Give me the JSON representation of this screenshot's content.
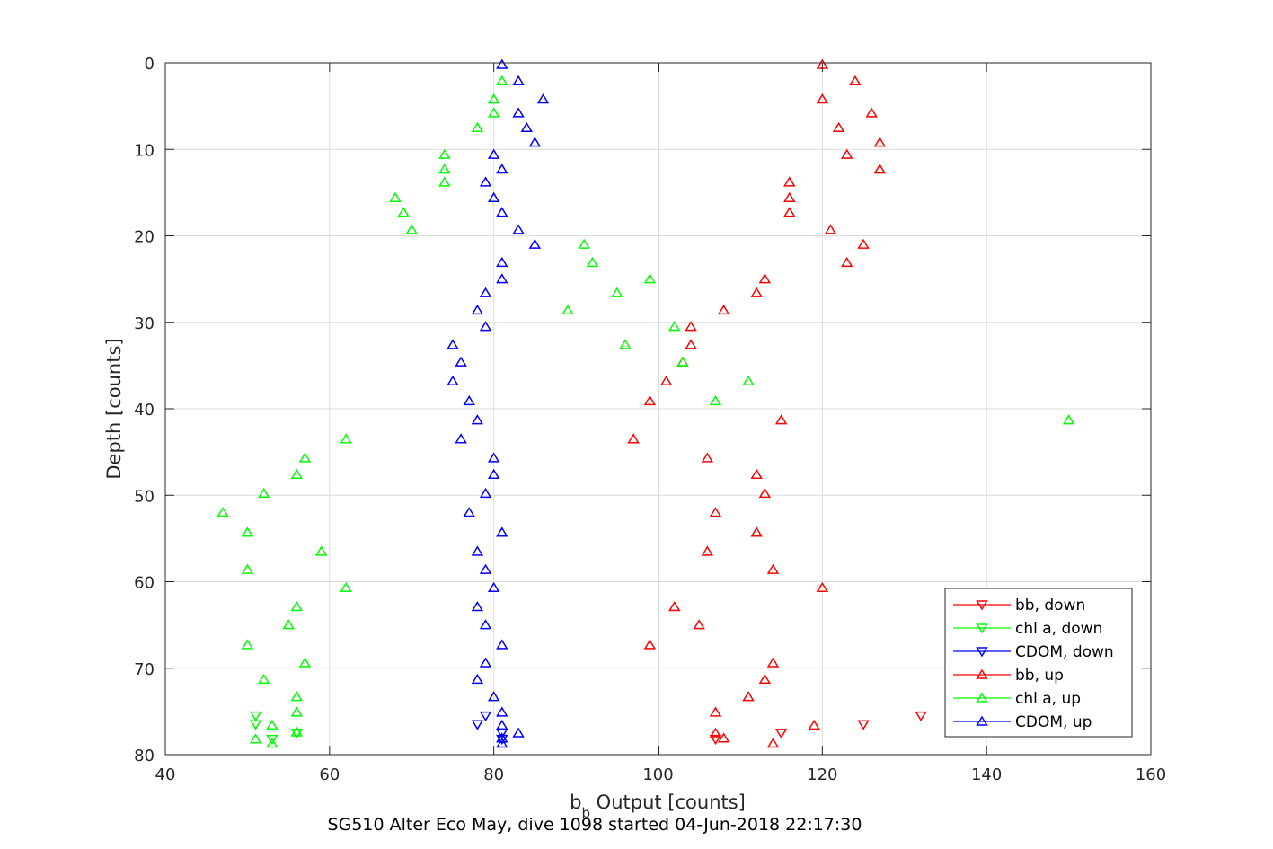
{
  "chart_data": {
    "type": "scatter",
    "xlabel_main": "b",
    "xlabel_sub": "b",
    "xlabel_rest": " Output [counts]",
    "ylabel": "Depth [counts]",
    "caption": "SG510 Alter Eco May, dive 1098 started 04-Jun-2018 22:17:30",
    "xlim": [
      40,
      160
    ],
    "ylim": [
      0,
      80
    ],
    "y_reversed": true,
    "xticks": [
      40,
      60,
      80,
      100,
      120,
      140,
      160
    ],
    "yticks": [
      0,
      10,
      20,
      30,
      40,
      50,
      60,
      70,
      80
    ],
    "grid": true,
    "legend_position": "bottom-right",
    "series": [
      {
        "name": "bb, down",
        "color": "#ff0000",
        "marker": "triangle-down",
        "points": [
          [
            132,
            75.5
          ],
          [
            125,
            76.5
          ],
          [
            115,
            77.5
          ],
          [
            107,
            78.2
          ]
        ]
      },
      {
        "name": "chl a, down",
        "color": "#00ff00",
        "marker": "triangle-down",
        "points": [
          [
            51,
            75.5
          ],
          [
            51,
            76.5
          ],
          [
            56,
            77.5
          ],
          [
            53,
            78.2
          ]
        ]
      },
      {
        "name": "CDOM, down",
        "color": "#0000ff",
        "marker": "triangle-down",
        "points": [
          [
            79,
            75.5
          ],
          [
            78,
            76.5
          ],
          [
            81,
            77.5
          ],
          [
            81,
            78.2
          ]
        ]
      },
      {
        "name": "bb, up",
        "color": "#ff0000",
        "marker": "triangle-up",
        "points": [
          [
            120,
            0.2
          ],
          [
            124,
            2.1
          ],
          [
            120,
            4.2
          ],
          [
            126,
            5.8
          ],
          [
            122,
            7.5
          ],
          [
            127,
            9.2
          ],
          [
            123,
            10.6
          ],
          [
            127,
            12.3
          ],
          [
            116,
            13.8
          ],
          [
            116,
            15.6
          ],
          [
            116,
            17.3
          ],
          [
            121,
            19.3
          ],
          [
            125,
            21.0
          ],
          [
            123,
            23.1
          ],
          [
            113,
            25.0
          ],
          [
            112,
            26.6
          ],
          [
            108,
            28.6
          ],
          [
            104,
            30.5
          ],
          [
            104,
            32.6
          ],
          [
            103,
            34.6
          ],
          [
            101,
            36.8
          ],
          [
            99,
            39.1
          ],
          [
            115,
            41.3
          ],
          [
            97,
            43.5
          ],
          [
            106,
            45.7
          ],
          [
            112,
            47.6
          ],
          [
            113,
            49.8
          ],
          [
            107,
            52.0
          ],
          [
            112,
            54.3
          ],
          [
            106,
            56.5
          ],
          [
            114,
            58.6
          ],
          [
            120,
            60.7
          ],
          [
            102,
            62.9
          ],
          [
            105,
            65.0
          ],
          [
            99,
            67.3
          ],
          [
            114,
            69.4
          ],
          [
            113,
            71.3
          ],
          [
            111,
            73.3
          ],
          [
            107,
            75.1
          ],
          [
            119,
            76.6
          ],
          [
            107,
            77.5
          ],
          [
            108,
            78.1
          ],
          [
            114,
            78.7
          ]
        ]
      },
      {
        "name": "chl a, up",
        "color": "#00ff00",
        "marker": "triangle-up",
        "points": [
          [
            81,
            2.1
          ],
          [
            80,
            4.2
          ],
          [
            80,
            5.8
          ],
          [
            78,
            7.5
          ],
          [
            74,
            10.6
          ],
          [
            74,
            12.3
          ],
          [
            74,
            13.8
          ],
          [
            68,
            15.6
          ],
          [
            69,
            17.3
          ],
          [
            70,
            19.3
          ],
          [
            91,
            21.0
          ],
          [
            92,
            23.1
          ],
          [
            99,
            25.0
          ],
          [
            95,
            26.6
          ],
          [
            89,
            28.6
          ],
          [
            102,
            30.5
          ],
          [
            96,
            32.6
          ],
          [
            103,
            34.6
          ],
          [
            111,
            36.8
          ],
          [
            107,
            39.1
          ],
          [
            150,
            41.3
          ],
          [
            62,
            43.5
          ],
          [
            57,
            45.7
          ],
          [
            56,
            47.6
          ],
          [
            52,
            49.8
          ],
          [
            47,
            52.0
          ],
          [
            50,
            54.3
          ],
          [
            59,
            56.5
          ],
          [
            50,
            58.6
          ],
          [
            62,
            60.7
          ],
          [
            56,
            62.9
          ],
          [
            55,
            65.0
          ],
          [
            50,
            67.3
          ],
          [
            57,
            69.4
          ],
          [
            52,
            71.3
          ],
          [
            56,
            73.3
          ],
          [
            56,
            75.1
          ],
          [
            53,
            76.6
          ],
          [
            56,
            77.4
          ],
          [
            51,
            78.2
          ],
          [
            53,
            78.7
          ]
        ]
      },
      {
        "name": "CDOM, up",
        "color": "#0000ff",
        "marker": "triangle-up",
        "points": [
          [
            81,
            0.2
          ],
          [
            83,
            2.1
          ],
          [
            86,
            4.2
          ],
          [
            83,
            5.8
          ],
          [
            84,
            7.5
          ],
          [
            85,
            9.2
          ],
          [
            80,
            10.6
          ],
          [
            81,
            12.3
          ],
          [
            79,
            13.8
          ],
          [
            80,
            15.6
          ],
          [
            81,
            17.3
          ],
          [
            83,
            19.3
          ],
          [
            85,
            21.0
          ],
          [
            81,
            23.1
          ],
          [
            81,
            25.0
          ],
          [
            79,
            26.6
          ],
          [
            78,
            28.6
          ],
          [
            79,
            30.5
          ],
          [
            75,
            32.6
          ],
          [
            76,
            34.6
          ],
          [
            75,
            36.8
          ],
          [
            77,
            39.1
          ],
          [
            78,
            41.3
          ],
          [
            76,
            43.5
          ],
          [
            80,
            45.7
          ],
          [
            80,
            47.6
          ],
          [
            79,
            49.8
          ],
          [
            77,
            52.0
          ],
          [
            81,
            54.3
          ],
          [
            78,
            56.5
          ],
          [
            79,
            58.6
          ],
          [
            80,
            60.7
          ],
          [
            78,
            62.9
          ],
          [
            79,
            65.0
          ],
          [
            81,
            67.3
          ],
          [
            79,
            69.4
          ],
          [
            78,
            71.3
          ],
          [
            80,
            73.3
          ],
          [
            81,
            75.1
          ],
          [
            81,
            76.6
          ],
          [
            83,
            77.5
          ],
          [
            81,
            78.1
          ],
          [
            81,
            78.7
          ]
        ]
      }
    ]
  }
}
